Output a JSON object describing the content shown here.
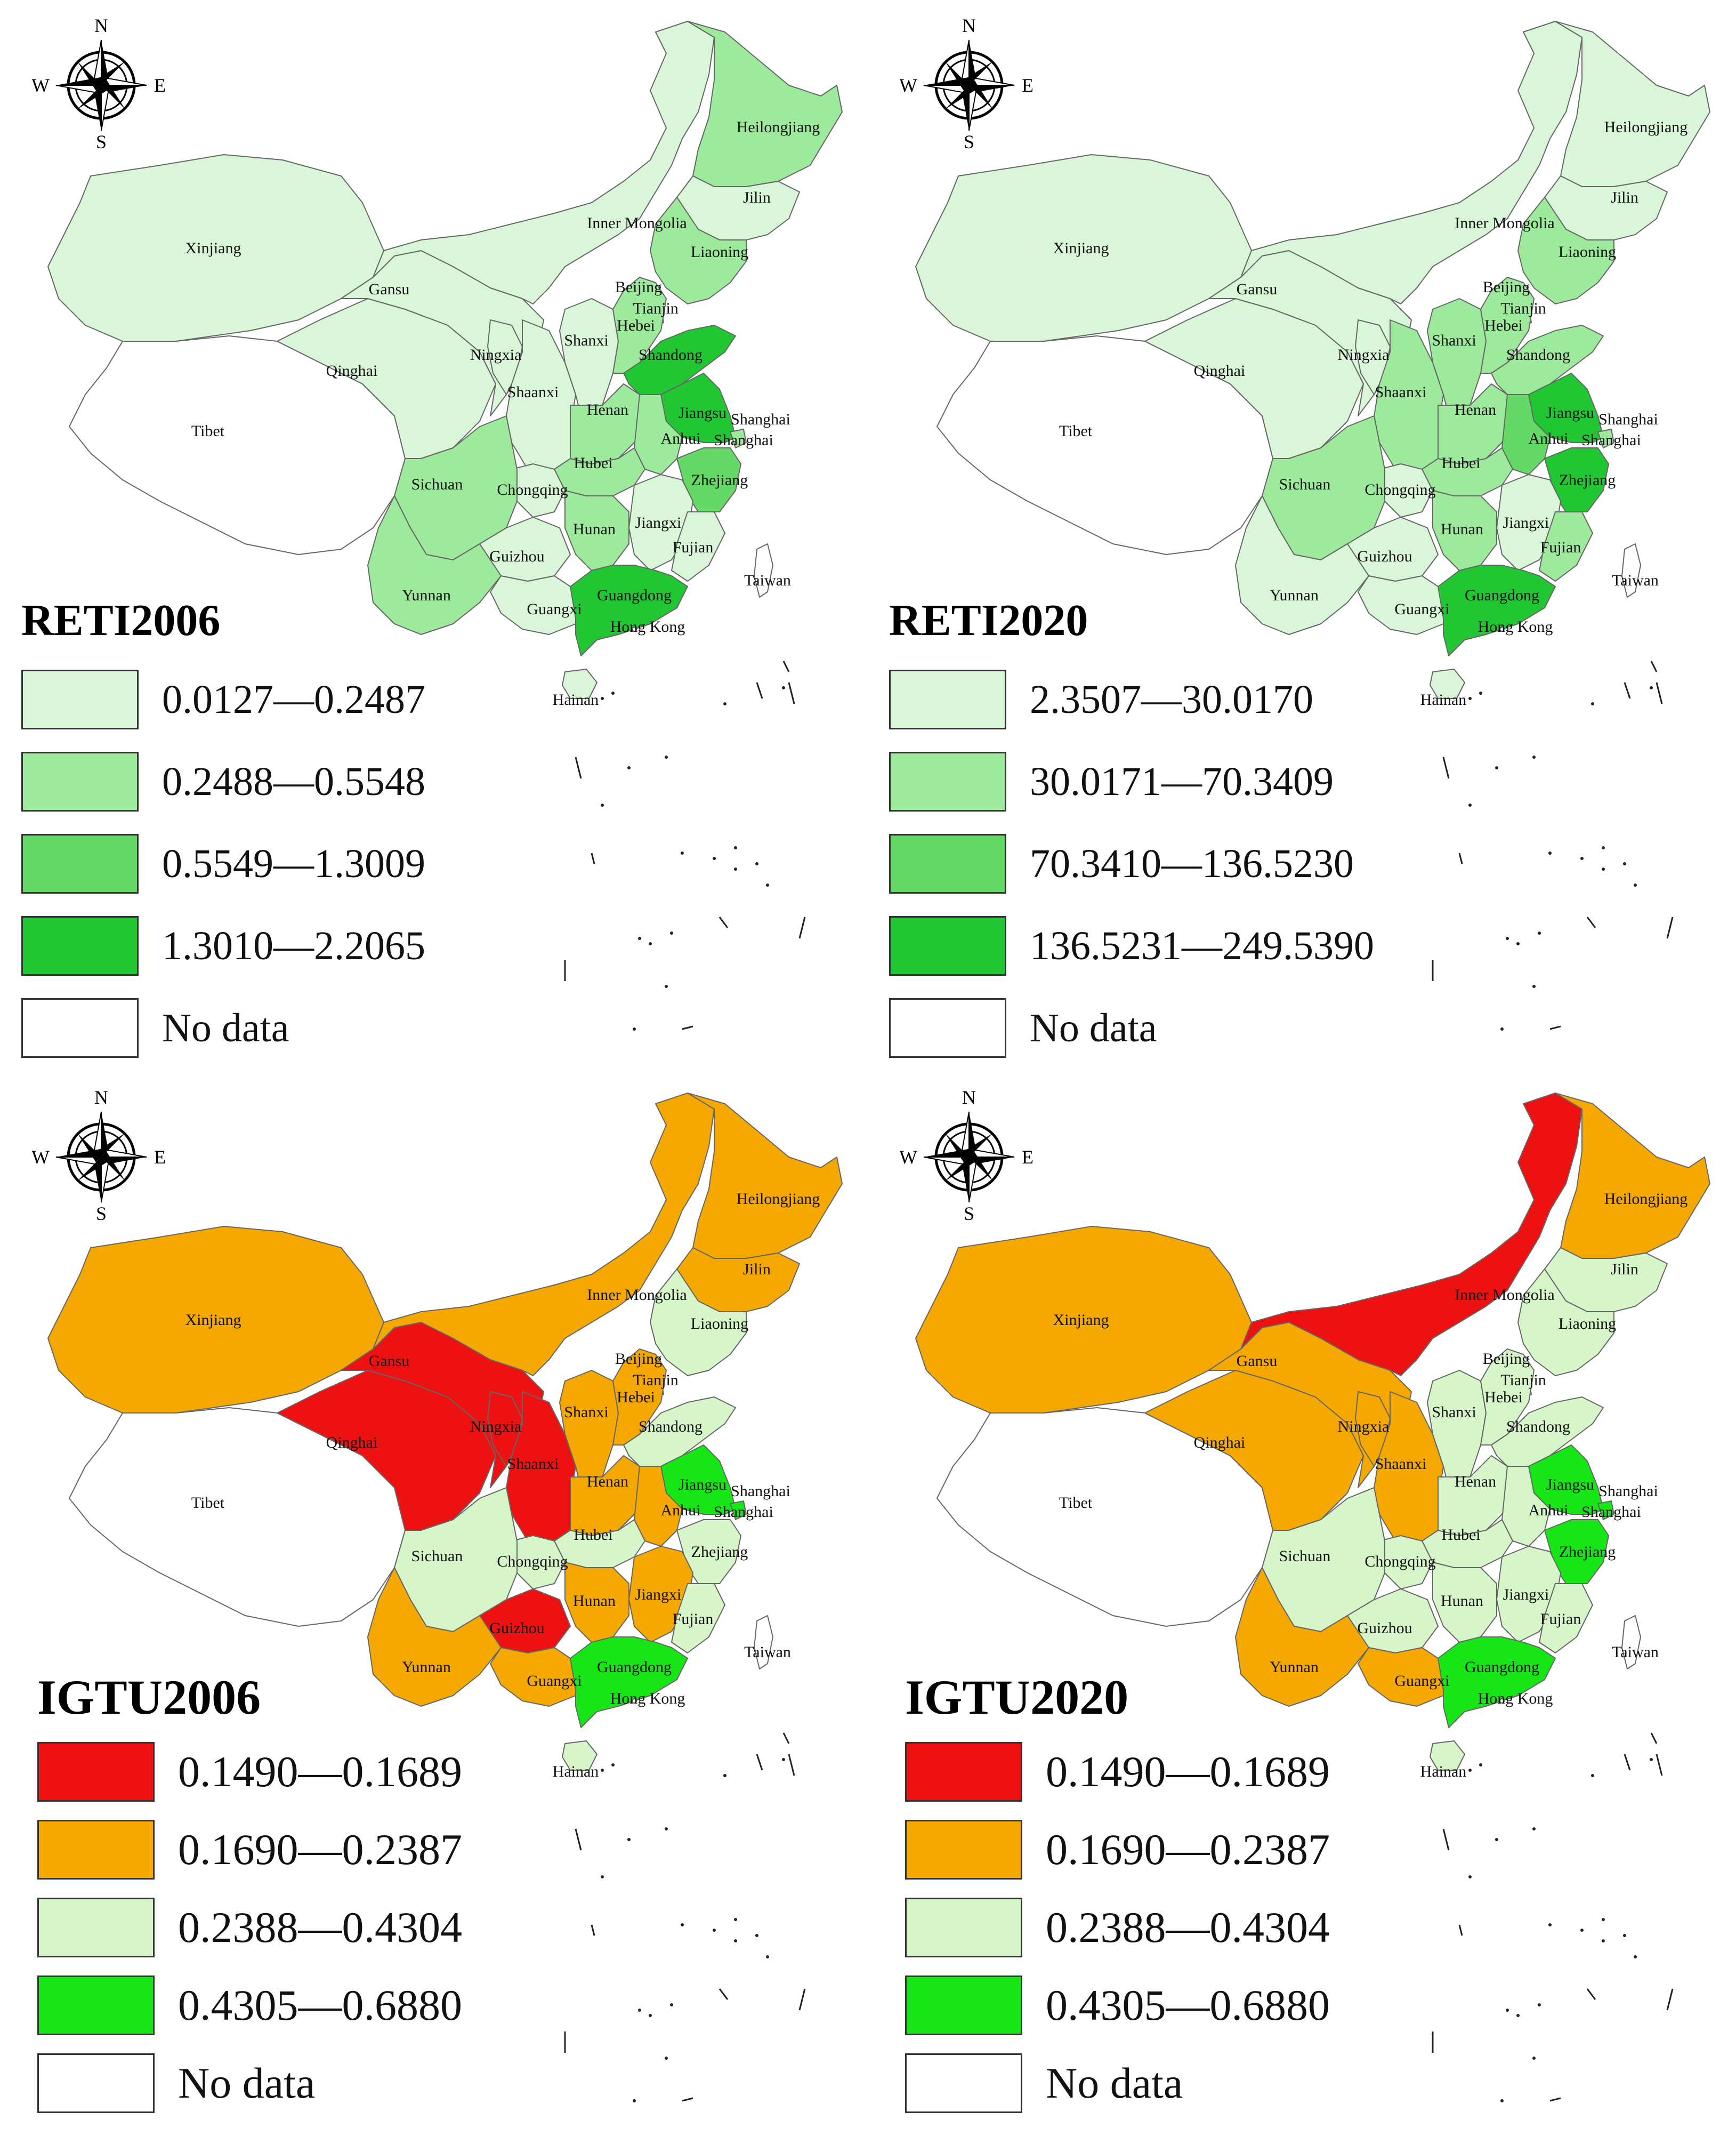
{
  "provinces": {
    "xinjiang": "Xinjiang",
    "tibet": "Tibet",
    "qinghai": "Qinghai",
    "gansu": "Gansu",
    "ningxia": "Ningxia",
    "shaanxi": "Shaanxi",
    "shanxi": "Shanxi",
    "inner_mongolia": "Inner Mongolia",
    "heilongjiang": "Heilongjiang",
    "jilin": "Jilin",
    "liaoning": "Liaoning",
    "beijing": "Beijing",
    "tianjin": "Tianjin",
    "hebei": "Hebei",
    "shandong": "Shandong",
    "henan": "Henan",
    "jiangsu": "Jiangsu",
    "anhui": "Anhui",
    "shanghai_a": "Shanghai",
    "shanghai_b": "Shanghai",
    "hubei": "Hubei",
    "sichuan": "Sichuan",
    "chongqing": "Chongqing",
    "zhejiang": "Zhejiang",
    "hunan": "Hunan",
    "jiangxi": "Jiangxi",
    "guizhou": "Guizhou",
    "fujian": "Fujian",
    "yunnan": "Yunnan",
    "guangxi": "Guangxi",
    "guangdong": "Guangdong",
    "taiwan": "Taiwan",
    "hongkong": "Hong Kong",
    "hainan": "Hainan"
  },
  "compass": {
    "n": "N",
    "s": "S",
    "e": "E",
    "w": "W"
  },
  "maps": [
    {
      "title": "RETI2006",
      "legend": [
        {
          "range": "0.0127—0.2487",
          "color": "#d9f7d8"
        },
        {
          "range": "0.2488—0.5548",
          "color": "#9eea9c"
        },
        {
          "range": "0.5549—1.3009",
          "color": "#64d966"
        },
        {
          "range": "1.3010—2.2065",
          "color": "#21c633"
        },
        {
          "range": "No data",
          "color": "#ffffff"
        }
      ],
      "fills": {
        "xinjiang": "#d9f7d8",
        "tibet": "#ffffff",
        "qinghai": "#d9f7d8",
        "gansu": "#d9f7d8",
        "ningxia": "#d9f7d8",
        "shaanxi": "#d9f7d8",
        "shanxi": "#d9f7d8",
        "inner_mongolia": "#d9f7d8",
        "heilongjiang": "#9eea9c",
        "jilin": "#d9f7d8",
        "liaoning": "#9eea9c",
        "beijing": "#9eea9c",
        "tianjin": "#d9f7d8",
        "hebei": "#9eea9c",
        "shandong": "#21c633",
        "henan": "#9eea9c",
        "jiangsu": "#21c633",
        "anhui": "#9eea9c",
        "shanghai": "#9eea9c",
        "hubei": "#9eea9c",
        "sichuan": "#9eea9c",
        "chongqing": "#d9f7d8",
        "zhejiang": "#64d966",
        "hunan": "#9eea9c",
        "jiangxi": "#d9f7d8",
        "guizhou": "#d9f7d8",
        "fujian": "#d9f7d8",
        "yunnan": "#9eea9c",
        "guangxi": "#d9f7d8",
        "guangdong": "#21c633",
        "taiwan": "#ffffff",
        "hainan": "#d9f7d8"
      }
    },
    {
      "title": "RETI2020",
      "legend": [
        {
          "range": "2.3507—30.0170",
          "color": "#d9f7d8"
        },
        {
          "range": "30.0171—70.3409",
          "color": "#9eea9c"
        },
        {
          "range": "70.3410—136.5230",
          "color": "#64d966"
        },
        {
          "range": "136.5231—249.5390",
          "color": "#21c633"
        },
        {
          "range": "No data",
          "color": "#ffffff"
        }
      ],
      "fills": {
        "xinjiang": "#d9f7d8",
        "tibet": "#ffffff",
        "qinghai": "#d9f7d8",
        "gansu": "#d9f7d8",
        "ningxia": "#d9f7d8",
        "shaanxi": "#9eea9c",
        "shanxi": "#9eea9c",
        "inner_mongolia": "#d9f7d8",
        "heilongjiang": "#d9f7d8",
        "jilin": "#d9f7d8",
        "liaoning": "#9eea9c",
        "beijing": "#9eea9c",
        "tianjin": "#d9f7d8",
        "hebei": "#9eea9c",
        "shandong": "#9eea9c",
        "henan": "#9eea9c",
        "jiangsu": "#21c633",
        "anhui": "#64d966",
        "shanghai": "#9eea9c",
        "hubei": "#9eea9c",
        "sichuan": "#9eea9c",
        "chongqing": "#d9f7d8",
        "zhejiang": "#21c633",
        "hunan": "#9eea9c",
        "jiangxi": "#d9f7d8",
        "guizhou": "#d9f7d8",
        "fujian": "#9eea9c",
        "yunnan": "#d9f7d8",
        "guangxi": "#d9f7d8",
        "guangdong": "#21c633",
        "taiwan": "#ffffff",
        "hainan": "#d9f7d8"
      }
    },
    {
      "title": "IGTU2006",
      "legend": [
        {
          "range": "0.1490—0.1689",
          "color": "#ee1111"
        },
        {
          "range": "0.1690—0.2387",
          "color": "#f5a800"
        },
        {
          "range": "0.2388—0.4304",
          "color": "#d6f5c8"
        },
        {
          "range": "0.4305—0.6880",
          "color": "#16e516"
        },
        {
          "range": "No data",
          "color": "#ffffff"
        }
      ],
      "fills": {
        "xinjiang": "#f5a800",
        "tibet": "#ffffff",
        "qinghai": "#ee1111",
        "gansu": "#ee1111",
        "ningxia": "#ee1111",
        "shaanxi": "#ee1111",
        "shanxi": "#f5a800",
        "inner_mongolia": "#f5a800",
        "heilongjiang": "#f5a800",
        "jilin": "#f5a800",
        "liaoning": "#d6f5c8",
        "beijing": "#16e516",
        "tianjin": "#d6f5c8",
        "hebei": "#f5a800",
        "shandong": "#d6f5c8",
        "henan": "#f5a800",
        "jiangsu": "#16e516",
        "anhui": "#f5a800",
        "shanghai": "#16e516",
        "hubei": "#d6f5c8",
        "sichuan": "#d6f5c8",
        "chongqing": "#d6f5c8",
        "zhejiang": "#d6f5c8",
        "hunan": "#f5a800",
        "jiangxi": "#f5a800",
        "guizhou": "#ee1111",
        "fujian": "#d6f5c8",
        "yunnan": "#f5a800",
        "guangxi": "#f5a800",
        "guangdong": "#16e516",
        "taiwan": "#ffffff",
        "hainan": "#d6f5c8"
      }
    },
    {
      "title": "IGTU2020",
      "legend": [
        {
          "range": "0.1490—0.1689",
          "color": "#ee1111"
        },
        {
          "range": "0.1690—0.2387",
          "color": "#f5a800"
        },
        {
          "range": "0.2388—0.4304",
          "color": "#d6f5c8"
        },
        {
          "range": "0.4305—0.6880",
          "color": "#16e516"
        },
        {
          "range": "No data",
          "color": "#ffffff"
        }
      ],
      "fills": {
        "xinjiang": "#f5a800",
        "tibet": "#ffffff",
        "qinghai": "#f5a800",
        "gansu": "#f5a800",
        "ningxia": "#f5a800",
        "shaanxi": "#f5a800",
        "shanxi": "#d6f5c8",
        "inner_mongolia": "#ee1111",
        "heilongjiang": "#f5a800",
        "jilin": "#d6f5c8",
        "liaoning": "#d6f5c8",
        "beijing": "#16e516",
        "tianjin": "#d6f5c8",
        "hebei": "#d6f5c8",
        "shandong": "#d6f5c8",
        "henan": "#d6f5c8",
        "jiangsu": "#16e516",
        "anhui": "#d6f5c8",
        "shanghai": "#16e516",
        "hubei": "#d6f5c8",
        "sichuan": "#d6f5c8",
        "chongqing": "#d6f5c8",
        "zhejiang": "#16e516",
        "hunan": "#d6f5c8",
        "jiangxi": "#d6f5c8",
        "guizhou": "#d6f5c8",
        "fujian": "#d6f5c8",
        "yunnan": "#f5a800",
        "guangxi": "#f5a800",
        "guangdong": "#16e516",
        "taiwan": "#ffffff",
        "hainan": "#d6f5c8"
      }
    }
  ]
}
